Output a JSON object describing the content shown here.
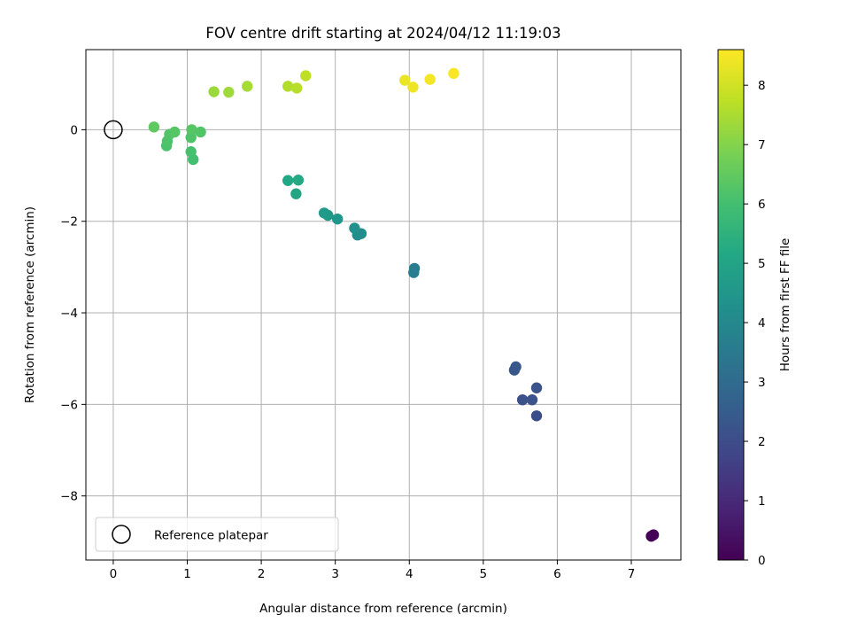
{
  "chart_data": {
    "type": "scatter",
    "title": "FOV centre drift starting at 2024/04/12 11:19:03",
    "xlabel": "Angular distance from reference (arcmin)",
    "ylabel": "Rotation from reference (arcmin)",
    "xlim": [
      -0.37,
      7.67
    ],
    "ylim": [
      -9.4,
      1.75
    ],
    "xticks": [
      0,
      1,
      2,
      3,
      4,
      5,
      6,
      7
    ],
    "xtick_labels": [
      "0",
      "1",
      "2",
      "3",
      "4",
      "5",
      "6",
      "7"
    ],
    "yticks": [
      0,
      -2,
      -4,
      -6,
      -8
    ],
    "ytick_labels": [
      "0",
      "−2",
      "−4",
      "−6",
      "−8"
    ],
    "grid": true,
    "legend": {
      "position": "lower-left",
      "entries": [
        {
          "label": "Reference platepar",
          "marker": "open-circle"
        }
      ]
    },
    "reference_point": {
      "x": 0,
      "y": 0
    },
    "colorbar": {
      "label": "Hours from first FF file",
      "colormap": "viridis",
      "range": [
        0,
        8.6
      ],
      "ticks": [
        0,
        1,
        2,
        3,
        4,
        5,
        6,
        7,
        8
      ],
      "tick_labels": [
        "0",
        "1",
        "2",
        "3",
        "4",
        "5",
        "6",
        "7",
        "8"
      ]
    },
    "points": [
      {
        "x": 7.27,
        "y": -8.88,
        "hours": 0.0
      },
      {
        "x": 7.3,
        "y": -8.85,
        "hours": 0.05
      },
      {
        "x": 5.72,
        "y": -6.25,
        "hours": 2.05
      },
      {
        "x": 5.53,
        "y": -5.9,
        "hours": 2.1
      },
      {
        "x": 5.66,
        "y": -5.9,
        "hours": 2.15
      },
      {
        "x": 5.72,
        "y": -5.64,
        "hours": 2.2
      },
      {
        "x": 5.42,
        "y": -5.25,
        "hours": 2.3
      },
      {
        "x": 5.44,
        "y": -5.18,
        "hours": 2.35
      },
      {
        "x": 4.06,
        "y": -3.12,
        "hours": 3.6
      },
      {
        "x": 4.07,
        "y": -3.03,
        "hours": 3.65
      },
      {
        "x": 3.3,
        "y": -2.3,
        "hours": 4.15
      },
      {
        "x": 3.35,
        "y": -2.27,
        "hours": 4.2
      },
      {
        "x": 3.26,
        "y": -2.15,
        "hours": 4.25
      },
      {
        "x": 3.03,
        "y": -1.95,
        "hours": 4.5
      },
      {
        "x": 2.9,
        "y": -1.87,
        "hours": 4.6
      },
      {
        "x": 2.85,
        "y": -1.82,
        "hours": 4.65
      },
      {
        "x": 2.47,
        "y": -1.4,
        "hours": 5.0
      },
      {
        "x": 2.36,
        "y": -1.11,
        "hours": 5.15
      },
      {
        "x": 2.5,
        "y": -1.1,
        "hours": 5.2
      },
      {
        "x": 1.08,
        "y": -0.65,
        "hours": 6.0
      },
      {
        "x": 1.05,
        "y": -0.48,
        "hours": 6.05
      },
      {
        "x": 0.72,
        "y": -0.35,
        "hours": 6.1
      },
      {
        "x": 0.73,
        "y": -0.25,
        "hours": 6.15
      },
      {
        "x": 1.05,
        "y": -0.17,
        "hours": 6.2
      },
      {
        "x": 0.76,
        "y": -0.1,
        "hours": 6.25
      },
      {
        "x": 1.18,
        "y": -0.05,
        "hours": 6.25
      },
      {
        "x": 0.83,
        "y": -0.05,
        "hours": 6.3
      },
      {
        "x": 1.06,
        "y": 0.0,
        "hours": 6.3
      },
      {
        "x": 0.55,
        "y": 0.06,
        "hours": 6.45
      },
      {
        "x": 1.36,
        "y": 0.83,
        "hours": 7.3
      },
      {
        "x": 1.56,
        "y": 0.82,
        "hours": 7.35
      },
      {
        "x": 1.81,
        "y": 0.95,
        "hours": 7.45
      },
      {
        "x": 2.36,
        "y": 0.95,
        "hours": 7.6
      },
      {
        "x": 2.48,
        "y": 0.91,
        "hours": 7.65
      },
      {
        "x": 2.6,
        "y": 1.18,
        "hours": 7.75
      },
      {
        "x": 3.94,
        "y": 1.08,
        "hours": 8.35
      },
      {
        "x": 4.05,
        "y": 0.93,
        "hours": 8.4
      },
      {
        "x": 4.28,
        "y": 1.1,
        "hours": 8.45
      },
      {
        "x": 4.6,
        "y": 1.23,
        "hours": 8.55
      }
    ]
  }
}
